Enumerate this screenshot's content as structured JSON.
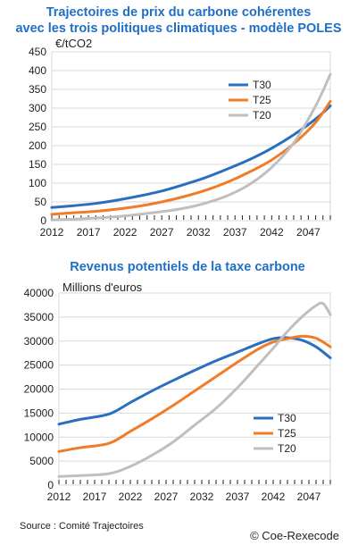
{
  "chart_data": [
    {
      "type": "line",
      "title": "Trajectoires de prix du carbone cohérentes\navec les trois politiques climatiques - modèle POLES",
      "title_lines": [
        "Trajectoires de prix du carbone cohérentes",
        "avec les trois politiques climatiques - modèle POLES"
      ],
      "unit": "€/tCO2",
      "ylim": [
        0,
        450
      ],
      "y_ticks": [
        0,
        50,
        100,
        150,
        200,
        250,
        300,
        350,
        400,
        450
      ],
      "xlim": [
        2012,
        2050
      ],
      "x_ticks": [
        "2012",
        "2017",
        "2022",
        "2027",
        "2032",
        "2037",
        "2042",
        "2047"
      ],
      "grid": true,
      "legend_position": "top-right",
      "series": [
        {
          "name": "T30",
          "color": "#2a6fbf",
          "x": [
            2012,
            2015,
            2018,
            2021,
            2024,
            2027,
            2030,
            2033,
            2036,
            2039,
            2042,
            2045,
            2048,
            2050
          ],
          "values": [
            35,
            40,
            46,
            55,
            66,
            79,
            96,
            115,
            138,
            163,
            193,
            229,
            271,
            306
          ]
        },
        {
          "name": "T25",
          "color": "#f07c27",
          "x": [
            2012,
            2015,
            2018,
            2021,
            2024,
            2027,
            2030,
            2033,
            2036,
            2039,
            2042,
            2045,
            2048,
            2050
          ],
          "values": [
            17,
            21,
            25,
            31,
            39,
            50,
            64,
            81,
            103,
            130,
            162,
            205,
            262,
            318
          ]
        },
        {
          "name": "T20",
          "color": "#bfbfbf",
          "x": [
            2012,
            2015,
            2018,
            2021,
            2024,
            2027,
            2030,
            2033,
            2036,
            2039,
            2042,
            2045,
            2048,
            2050
          ],
          "values": [
            2,
            4,
            7,
            11,
            17,
            24,
            33,
            47,
            67,
            97,
            142,
            207,
            306,
            390
          ]
        }
      ]
    },
    {
      "type": "line",
      "title": "Revenus potentiels de la taxe carbone",
      "title_lines": [
        "Revenus potentiels de la taxe carbone"
      ],
      "unit": "Millions d'euros",
      "ylim": [
        0,
        40000
      ],
      "y_ticks": [
        0,
        5000,
        10000,
        15000,
        20000,
        25000,
        30000,
        35000,
        40000
      ],
      "xlim": [
        2012,
        2050
      ],
      "x_ticks": [
        "2012",
        "2017",
        "2022",
        "2027",
        "2032",
        "2037",
        "2042",
        "2047"
      ],
      "grid": true,
      "legend_position": "bottom-right",
      "series": [
        {
          "name": "T30",
          "color": "#2a6fbf",
          "x": [
            2012,
            2015,
            2019,
            2022,
            2025,
            2028,
            2031,
            2034,
            2037,
            2040,
            2042,
            2044,
            2046,
            2048,
            2050
          ],
          "values": [
            12700,
            13700,
            14800,
            17200,
            19600,
            21800,
            23900,
            25900,
            27700,
            29500,
            30500,
            30700,
            30200,
            28800,
            26500
          ]
        },
        {
          "name": "T25",
          "color": "#f07c27",
          "x": [
            2012,
            2015,
            2019,
            2022,
            2025,
            2028,
            2031,
            2034,
            2037,
            2040,
            2042,
            2044,
            2046,
            2048,
            2050
          ],
          "values": [
            7000,
            7800,
            8700,
            11200,
            13800,
            16600,
            19600,
            22600,
            25600,
            28400,
            29800,
            30500,
            31000,
            30600,
            28800
          ]
        },
        {
          "name": "T20",
          "color": "#bfbfbf",
          "x": [
            2012,
            2015,
            2019,
            2022,
            2025,
            2028,
            2031,
            2034,
            2037,
            2040,
            2042,
            2044,
            2046,
            2048,
            2049,
            2050
          ],
          "values": [
            1800,
            2000,
            2400,
            3900,
            6200,
            9000,
            12500,
            16000,
            20300,
            25200,
            28500,
            32000,
            35000,
            37400,
            37800,
            35500
          ]
        }
      ]
    }
  ],
  "footer": {
    "source": "Source : Comité Trajectoires",
    "copyright": "© Coe-Rexecode"
  }
}
